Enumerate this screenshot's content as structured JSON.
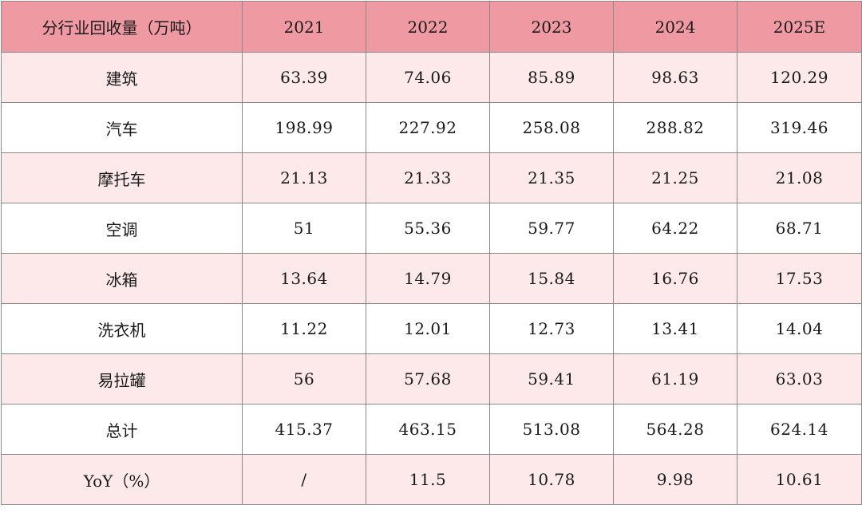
{
  "table": {
    "headers": [
      "分行业回收量（万吨）",
      "2021",
      "2022",
      "2023",
      "2024",
      "2025E"
    ],
    "rows": [
      {
        "label": "建筑",
        "values": [
          "63.39",
          "74.06",
          "85.89",
          "98.63",
          "120.29"
        ]
      },
      {
        "label": "汽车",
        "values": [
          "198.99",
          "227.92",
          "258.08",
          "288.82",
          "319.46"
        ]
      },
      {
        "label": "摩托车",
        "values": [
          "21.13",
          "21.33",
          "21.35",
          "21.25",
          "21.08"
        ]
      },
      {
        "label": "空调",
        "values": [
          "51",
          "55.36",
          "59.77",
          "64.22",
          "68.71"
        ]
      },
      {
        "label": "冰箱",
        "values": [
          "13.64",
          "14.79",
          "15.84",
          "16.76",
          "17.53"
        ]
      },
      {
        "label": "洗衣机",
        "values": [
          "11.22",
          "12.01",
          "12.73",
          "13.41",
          "14.04"
        ]
      },
      {
        "label": "易拉罐",
        "values": [
          "56",
          "57.68",
          "59.41",
          "61.19",
          "63.03"
        ]
      },
      {
        "label": "总计",
        "values": [
          "415.37",
          "463.15",
          "513.08",
          "564.28",
          "624.14"
        ]
      },
      {
        "label": "YoY（%）",
        "values": [
          "/",
          "11.5",
          "10.78",
          "9.98",
          "10.61"
        ]
      }
    ]
  },
  "colors": {
    "header_bg": "#ef9aa3",
    "odd_row_bg": "#fde9ea",
    "even_row_bg": "#ffffff",
    "border": "#8a8a8a"
  }
}
